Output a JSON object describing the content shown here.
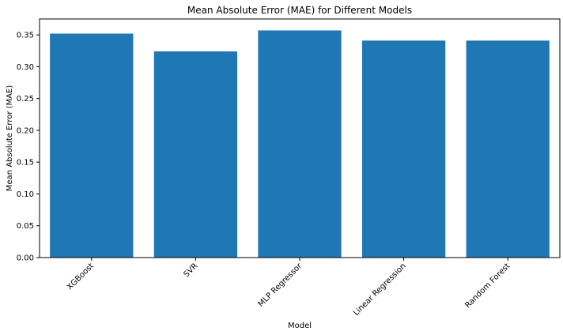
{
  "chart_data": {
    "type": "bar",
    "title": "Mean Absolute Error (MAE) for Different Models",
    "xlabel": "Model",
    "ylabel": "Mean Absolute Error (MAE)",
    "categories": [
      "XGBoost",
      "SVR",
      "MLP Regressor",
      "Linear Regression",
      "Random Forest"
    ],
    "values": [
      0.352,
      0.324,
      0.357,
      0.341,
      0.341
    ],
    "ylim": [
      0,
      0.375
    ],
    "yticks": [
      "0.00",
      "0.05",
      "0.10",
      "0.15",
      "0.20",
      "0.25",
      "0.30",
      "0.35"
    ],
    "grid": false,
    "legend": false,
    "bar_color": "#1f77b4"
  }
}
